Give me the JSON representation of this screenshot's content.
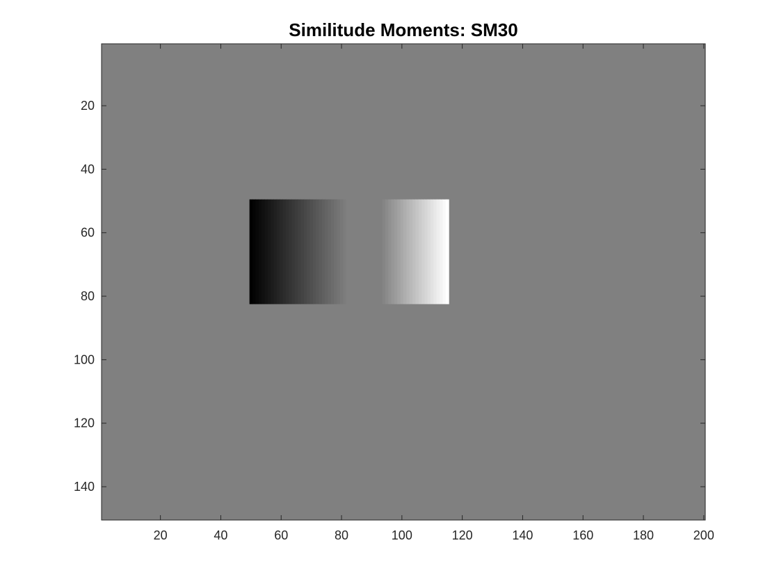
{
  "chart_data": {
    "type": "heatmap",
    "title": "Similitude Moments: SM30",
    "xlabel": "",
    "ylabel": "",
    "xlim": [
      0.5,
      200.5
    ],
    "ylim": [
      0.5,
      150.5
    ],
    "y_direction": "reversed",
    "x_ticks": [
      20,
      40,
      60,
      80,
      100,
      120,
      140,
      160,
      180,
      200
    ],
    "y_ticks": [
      20,
      40,
      60,
      80,
      100,
      120,
      140
    ],
    "x_tick_labels": [
      "20",
      "40",
      "60",
      "80",
      "100",
      "120",
      "140",
      "160",
      "180",
      "200"
    ],
    "y_tick_labels": [
      "20",
      "40",
      "60",
      "80",
      "100",
      "120",
      "140"
    ],
    "colormap": "gray",
    "clim": [
      -1,
      1
    ],
    "background_value": 0,
    "grid": false,
    "regions": [
      {
        "name": "dark-gradient",
        "x_range": [
          50,
          82
        ],
        "y_range": [
          50,
          82
        ],
        "value_start": -1,
        "value_end": 0
      },
      {
        "name": "light-gradient",
        "x_range": [
          93,
          115
        ],
        "y_range": [
          50,
          82
        ],
        "value_start": 0,
        "value_end": 1
      }
    ],
    "colors": {
      "low": "#000000",
      "mid": "#808080",
      "high": "#ffffff",
      "axis": "#262626"
    }
  }
}
